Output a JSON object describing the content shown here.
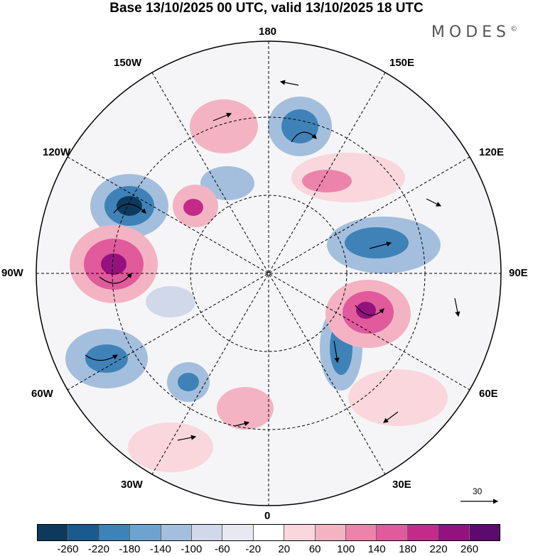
{
  "title": "Base 13/10/2025 00 UTC, valid 13/10/2025 18 UTC",
  "brand": "MODES",
  "brand_mark": "©",
  "map_labels": {
    "n180": "180",
    "w150": "150W",
    "e150": "150E",
    "w120": "120W",
    "e120": "120E",
    "w90": "90W",
    "e90": "90E",
    "w60": "60W",
    "e60": "60E",
    "w30": "30W",
    "e30": "30E",
    "s0": "0"
  },
  "vector_reference": "30",
  "legend": {
    "ticks": [
      "-260",
      "-220",
      "-180",
      "-140",
      "-100",
      "-60",
      "-20",
      "20",
      "60",
      "100",
      "140",
      "180",
      "220",
      "260"
    ],
    "colors": [
      "#0d3a5c",
      "#1a5a8c",
      "#3f82b8",
      "#6ea3cf",
      "#a4bfdd",
      "#d0d8ea",
      "#e8e8f2",
      "#ffffff",
      "#fad7dc",
      "#f4b3c3",
      "#ec83aa",
      "#e05a9c",
      "#c42a8a",
      "#93127e",
      "#5c0a6d"
    ]
  }
}
